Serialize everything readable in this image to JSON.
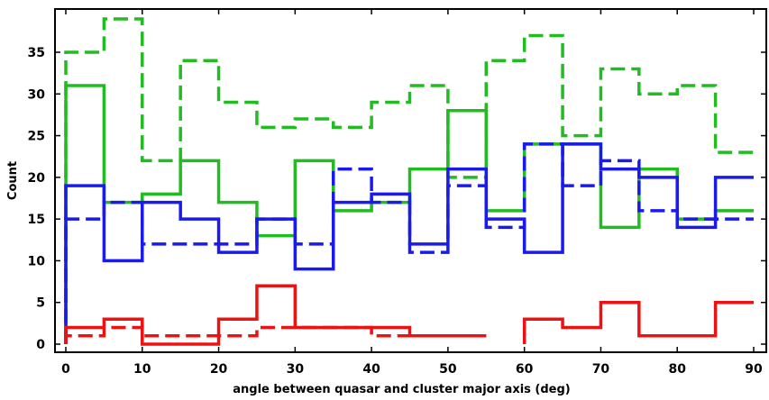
{
  "chart_data": {
    "type": "line",
    "step": "histogram",
    "xlabel": "angle between quasar and cluster major axis (deg)",
    "ylabel": "Count",
    "xlim": [
      0,
      90
    ],
    "ylim": [
      0,
      40
    ],
    "grid": false,
    "legend": "none",
    "bin_edges": [
      0,
      5,
      10,
      15,
      20,
      25,
      30,
      35,
      40,
      45,
      50,
      55,
      60,
      65,
      70,
      75,
      80,
      85,
      90
    ],
    "x_ticks": [
      0,
      10,
      20,
      30,
      40,
      50,
      60,
      70,
      80,
      90
    ],
    "y_ticks": [
      0,
      5,
      10,
      15,
      20,
      25,
      30,
      35
    ],
    "series": [
      {
        "color": "#22bb22",
        "dashed": true,
        "values": [
          35,
          39,
          22,
          34,
          29,
          26,
          27,
          26,
          29,
          31,
          20,
          34,
          37,
          25,
          33,
          30,
          31,
          23
        ]
      },
      {
        "color": "#22bb22",
        "dashed": false,
        "values": [
          31,
          17,
          18,
          22,
          17,
          13,
          22,
          16,
          17,
          21,
          28,
          16,
          24,
          24,
          14,
          21,
          15,
          16
        ]
      },
      {
        "color": "#1a1aee",
        "dashed": true,
        "values": [
          15,
          17,
          12,
          12,
          12,
          15,
          12,
          21,
          17,
          11,
          19,
          14,
          24,
          19,
          22,
          16,
          15,
          15
        ]
      },
      {
        "color": "#1a1aee",
        "dashed": false,
        "values": [
          19,
          10,
          17,
          15,
          11,
          15,
          9,
          17,
          18,
          12,
          21,
          15,
          11,
          24,
          21,
          20,
          14,
          20
        ]
      },
      {
        "color": "#ee1111",
        "dashed": false,
        "values": [
          2,
          3,
          0,
          0,
          3,
          7,
          2,
          2,
          2,
          1,
          1,
          null,
          3,
          2,
          5,
          1,
          1,
          5
        ]
      },
      {
        "color": "#ee1111",
        "dashed": true,
        "values": [
          1,
          2,
          1,
          1,
          1,
          2,
          2,
          2,
          1,
          1,
          1,
          null,
          null,
          null,
          null,
          null,
          null,
          null
        ]
      }
    ]
  }
}
